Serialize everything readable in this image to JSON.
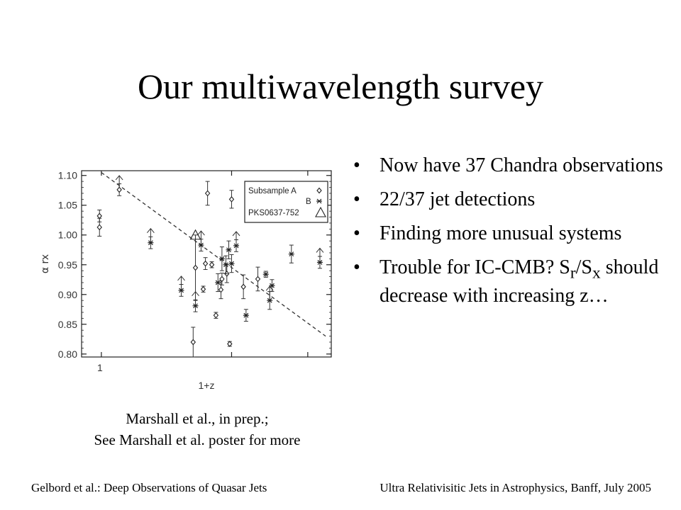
{
  "slide": {
    "title": "Our multiwavelength survey",
    "caption_line1": "Marshall et al., in prep.;",
    "caption_line2": "See Marshall et al. poster for more",
    "bullets": [
      {
        "text": "Now have 37 Chandra observations"
      },
      {
        "text": "22/37 jet detections"
      },
      {
        "text": "Finding more unusual systems"
      },
      {
        "pre": "Trouble for IC-CMB? S",
        "sub1": "r",
        "mid": "/S",
        "sub2": "x",
        "post": " should decrease with increasing z…"
      }
    ],
    "footer_left": "Gelbord et al.: Deep Observations of Quasar Jets",
    "footer_right": "Ultra Relativisitic Jets in Astrophysics, Banff, July 2005"
  },
  "chart_data": {
    "type": "scatter",
    "xlabel": "1+z",
    "ylabel": "α_rx",
    "ylim": [
      0.79,
      1.11
    ],
    "yticks": [
      "1.10",
      "1.05",
      "1.00",
      "0.95",
      "0.90",
      "0.85",
      "0.80"
    ],
    "xticks": [
      "1"
    ],
    "x_scale": "log",
    "legend": {
      "placement": "top-right",
      "entries": [
        {
          "label": "Subsample A",
          "marker": "diamond"
        },
        {
          "label": "B",
          "marker": "asterisk"
        },
        {
          "label": "PKS0637-752",
          "marker": "triangle"
        }
      ]
    },
    "trend_line": {
      "style": "dashed",
      "from": [
        1.0,
        1.105
      ],
      "to": [
        3.3,
        0.83
      ]
    },
    "series": [
      {
        "name": "Subsample A",
        "marker": "diamond",
        "points": [
          {
            "x": 0.99,
            "y": 1.032,
            "err": 0.01
          },
          {
            "x": 0.99,
            "y": 1.013,
            "err": 0.015
          },
          {
            "x": 1.1,
            "y": 1.076,
            "err": 0.01,
            "limit": "up"
          },
          {
            "x": 1.63,
            "y": 0.82,
            "err": 0.025
          },
          {
            "x": 1.65,
            "y": 0.945,
            "err": 0.055
          },
          {
            "x": 1.72,
            "y": 0.909,
            "err": 0.005
          },
          {
            "x": 1.76,
            "y": 1.07,
            "err": 0.02
          },
          {
            "x": 1.74,
            "y": 0.952,
            "err": 0.01
          },
          {
            "x": 1.8,
            "y": 0.95,
            "err": 0.005
          },
          {
            "x": 1.84,
            "y": 0.865,
            "err": 0.005
          },
          {
            "x": 1.89,
            "y": 0.908,
            "err": 0.015
          },
          {
            "x": 1.9,
            "y": 0.926,
            "err": 0.01
          },
          {
            "x": 1.95,
            "y": 0.935,
            "err": 0.015
          },
          {
            "x": 1.98,
            "y": 0.817,
            "err": 0.004
          },
          {
            "x": 2.0,
            "y": 1.06,
            "err": 0.015
          },
          {
            "x": 2.13,
            "y": 0.913,
            "err": 0.02
          },
          {
            "x": 2.3,
            "y": 0.926,
            "err": 0.02
          }
        ]
      },
      {
        "name": "B",
        "marker": "asterisk",
        "points": [
          {
            "x": 1.3,
            "y": 0.987,
            "err": 0.01,
            "limit": "up"
          },
          {
            "x": 1.53,
            "y": 0.907,
            "err": 0.01,
            "limit": "up"
          },
          {
            "x": 1.65,
            "y": 0.881,
            "err": 0.01,
            "limit": "up"
          },
          {
            "x": 1.7,
            "y": 0.983,
            "err": 0.01,
            "limit": "up"
          },
          {
            "x": 1.86,
            "y": 0.92,
            "err": 0.015
          },
          {
            "x": 1.9,
            "y": 0.96,
            "err": 0.02
          },
          {
            "x": 1.94,
            "y": 0.95,
            "err": 0.015
          },
          {
            "x": 1.97,
            "y": 0.975,
            "err": 0.015
          },
          {
            "x": 2.0,
            "y": 0.952,
            "err": 0.015
          },
          {
            "x": 2.05,
            "y": 0.982,
            "err": 0.01,
            "limit": "up"
          },
          {
            "x": 2.16,
            "y": 0.865,
            "err": 0.01
          },
          {
            "x": 2.4,
            "y": 0.934,
            "err": 0.005
          },
          {
            "x": 2.45,
            "y": 0.89,
            "err": 0.015,
            "limit": "up"
          },
          {
            "x": 2.48,
            "y": 0.915,
            "err": 0.01
          },
          {
            "x": 2.75,
            "y": 0.968,
            "err": 0.015
          },
          {
            "x": 3.2,
            "y": 0.954,
            "err": 0.01,
            "limit": "up"
          }
        ]
      },
      {
        "name": "PKS0637-752",
        "marker": "triangle",
        "points": [
          {
            "x": 1.65,
            "y": 1.0
          }
        ]
      }
    ]
  }
}
